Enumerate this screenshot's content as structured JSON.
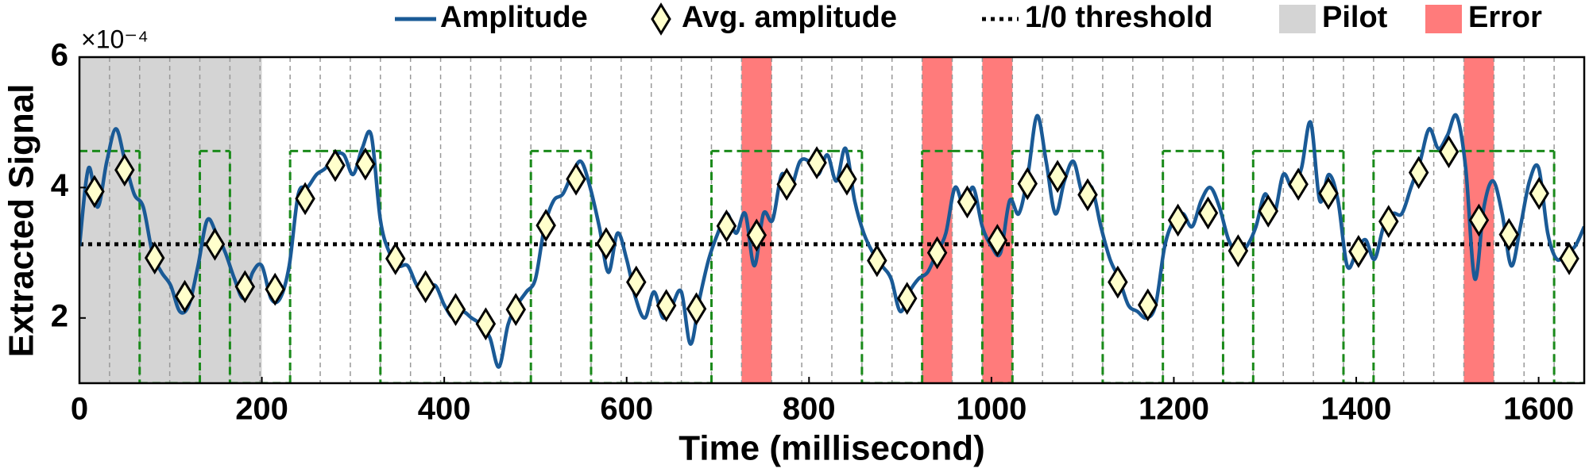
{
  "chart_data": {
    "type": "line",
    "y_label": "Extracted Signal",
    "x_label": "Time (millisecond)",
    "y_multiplier": "×10⁻⁴",
    "xlim": [
      0,
      1650
    ],
    "ylim": [
      1,
      6
    ],
    "xticks": [
      0,
      200,
      400,
      600,
      800,
      1000,
      1200,
      1400,
      1600
    ],
    "yticks": [
      2,
      4,
      6
    ],
    "x": [
      0,
      10,
      20,
      30,
      40,
      50,
      60,
      70,
      80,
      90,
      100,
      110,
      120,
      130,
      140,
      150,
      160,
      170,
      180,
      190,
      200,
      210,
      220,
      230,
      240,
      250,
      260,
      270,
      280,
      290,
      300,
      310,
      320,
      330,
      340,
      350,
      360,
      370,
      380,
      390,
      400,
      410,
      420,
      430,
      440,
      450,
      460,
      470,
      480,
      490,
      500,
      510,
      520,
      530,
      540,
      550,
      560,
      570,
      580,
      590,
      600,
      610,
      620,
      630,
      640,
      650,
      660,
      670,
      680,
      690,
      700,
      710,
      720,
      730,
      740,
      750,
      760,
      770,
      780,
      790,
      800,
      810,
      820,
      830,
      840,
      850,
      860,
      870,
      880,
      890,
      900,
      910,
      920,
      930,
      940,
      950,
      960,
      970,
      980,
      990,
      1000,
      1010,
      1020,
      1030,
      1040,
      1050,
      1060,
      1070,
      1080,
      1090,
      1100,
      1110,
      1120,
      1130,
      1140,
      1150,
      1160,
      1170,
      1180,
      1190,
      1200,
      1210,
      1220,
      1230,
      1240,
      1250,
      1260,
      1270,
      1280,
      1290,
      1300,
      1310,
      1320,
      1330,
      1340,
      1350,
      1360,
      1370,
      1380,
      1390,
      1400,
      1410,
      1420,
      1430,
      1440,
      1450,
      1460,
      1470,
      1480,
      1490,
      1500,
      1510,
      1520,
      1530,
      1540,
      1550,
      1560,
      1570,
      1580,
      1590,
      1600,
      1610,
      1620,
      1630,
      1640,
      1650
    ],
    "series": [
      {
        "name": "Amplitude",
        "color": "#1a5a96",
        "values": [
          3.1,
          4.3,
          3.7,
          4.4,
          4.9,
          4.4,
          3.9,
          3.7,
          3.0,
          2.7,
          2.5,
          2.1,
          2.2,
          2.8,
          3.5,
          3.3,
          3.0,
          2.6,
          2.3,
          2.7,
          2.8,
          2.3,
          2.3,
          2.8,
          3.9,
          4.0,
          4.2,
          4.3,
          4.5,
          4.5,
          4.2,
          4.6,
          4.8,
          3.5,
          3.0,
          2.8,
          2.8,
          2.5,
          2.4,
          2.5,
          2.2,
          2.0,
          2.1,
          2.0,
          1.9,
          1.7,
          1.25,
          1.9,
          2.2,
          2.4,
          2.6,
          3.4,
          3.8,
          3.9,
          4.2,
          4.4,
          4.0,
          3.4,
          2.7,
          3.3,
          2.9,
          2.3,
          2.0,
          2.4,
          2.0,
          2.2,
          2.4,
          1.6,
          2.3,
          2.9,
          3.3,
          3.6,
          3.3,
          3.6,
          2.8,
          3.6,
          3.5,
          4.2,
          4.0,
          4.4,
          4.4,
          4.2,
          4.5,
          4.1,
          4.6,
          3.8,
          3.3,
          3.0,
          2.8,
          2.6,
          2.1,
          2.4,
          2.6,
          2.7,
          3.0,
          3.3,
          4.0,
          3.7,
          4.0,
          3.4,
          3.1,
          3.0,
          3.8,
          3.6,
          4.2,
          5.1,
          4.4,
          3.6,
          4.1,
          4.4,
          3.9,
          4.0,
          3.4,
          2.9,
          2.6,
          2.2,
          2.1,
          2.0,
          2.2,
          3.1,
          3.5,
          3.6,
          3.4,
          3.8,
          4.0,
          3.7,
          3.2,
          3.0,
          3.1,
          3.4,
          3.9,
          3.6,
          4.2,
          4.0,
          4.3,
          5.0,
          3.8,
          4.2,
          3.8,
          2.8,
          3.0,
          3.2,
          2.9,
          3.4,
          3.6,
          3.6,
          4.0,
          4.4,
          4.9,
          4.6,
          4.8,
          5.1,
          4.3,
          2.6,
          3.7,
          4.1,
          3.6,
          2.8,
          3.4,
          4.1,
          4.3,
          3.3,
          2.9,
          3.0,
          3.1,
          3.4
        ]
      },
      {
        "name": "Avg. amplitude",
        "type": "scatter",
        "marker": "diamond",
        "color": "#ffffcc",
        "x": [
          16.5,
          49.5,
          82.5,
          115.5,
          148.5,
          181.5,
          214.5,
          247.5,
          280.5,
          313.5,
          346.5,
          379.5,
          412.5,
          445.5,
          478.5,
          511.5,
          544.5,
          577.5,
          610.5,
          643.5,
          676.5,
          709.5,
          742.5,
          775.5,
          808.5,
          841.5,
          874.5,
          907.5,
          940.5,
          973.5,
          1006.5,
          1039.5,
          1072.5,
          1105.5,
          1138.5,
          1171.5,
          1204.5,
          1237.5,
          1270.5,
          1303.5,
          1336.5,
          1369.5,
          1402.5,
          1435.5,
          1468.5,
          1501.5,
          1534.5,
          1567.5,
          1600.5,
          1633.5
        ],
        "values": [
          3.94,
          4.27,
          2.92,
          2.33,
          3.13,
          2.48,
          2.44,
          3.83,
          4.34,
          4.36,
          2.91,
          2.48,
          2.13,
          1.91,
          2.13,
          3.42,
          4.13,
          3.14,
          2.55,
          2.19,
          2.14,
          3.41,
          3.27,
          4.05,
          4.38,
          4.13,
          2.88,
          2.3,
          3.0,
          3.78,
          3.19,
          4.06,
          4.17,
          3.89,
          2.55,
          2.2,
          3.5,
          3.61,
          3.03,
          3.64,
          4.05,
          3.91,
          3.02,
          3.48,
          4.23,
          4.55,
          3.5,
          3.28,
          3.91,
          2.91
        ]
      }
    ],
    "threshold": {
      "name": "1/0 threshold",
      "value": 3.13,
      "color": "#000000"
    },
    "regions": [
      {
        "name": "Pilot",
        "color": "#d4d4d4",
        "spans": [
          [
            0,
            200
          ]
        ]
      },
      {
        "name": "Error",
        "color": "#ff7b7b",
        "spans": [
          [
            726,
            759
          ],
          [
            924,
            957
          ],
          [
            990,
            1023
          ],
          [
            1518,
            1551
          ]
        ]
      }
    ],
    "decoded": {
      "color": "#1a8a1a",
      "edges": [
        0,
        33,
        66,
        99,
        132,
        165,
        198,
        231,
        264,
        297,
        330,
        363,
        396,
        429,
        462,
        495,
        528,
        561,
        594,
        627,
        660,
        693,
        726,
        759,
        792,
        825,
        858,
        891,
        924,
        957,
        990,
        1023,
        1056,
        1089,
        1122,
        1155,
        1188,
        1221,
        1254,
        1287,
        1320,
        1353,
        1386,
        1419,
        1452,
        1485,
        1518,
        1551,
        1584,
        1617,
        1650
      ],
      "values": [
        4.56,
        4.56,
        1,
        1,
        4.56,
        1,
        1,
        4.56,
        4.56,
        4.56,
        1,
        1,
        1,
        1,
        1,
        4.56,
        4.56,
        1,
        1,
        1,
        1,
        4.56,
        4.56,
        4.56,
        4.56,
        4.56,
        1,
        1,
        4.56,
        4.56,
        1,
        4.56,
        4.56,
        4.56,
        1,
        1,
        4.56,
        4.56,
        1,
        4.56,
        4.56,
        4.56,
        1,
        4.56,
        4.56,
        4.56,
        4.56,
        4.56,
        4.56,
        1
      ]
    }
  }
}
